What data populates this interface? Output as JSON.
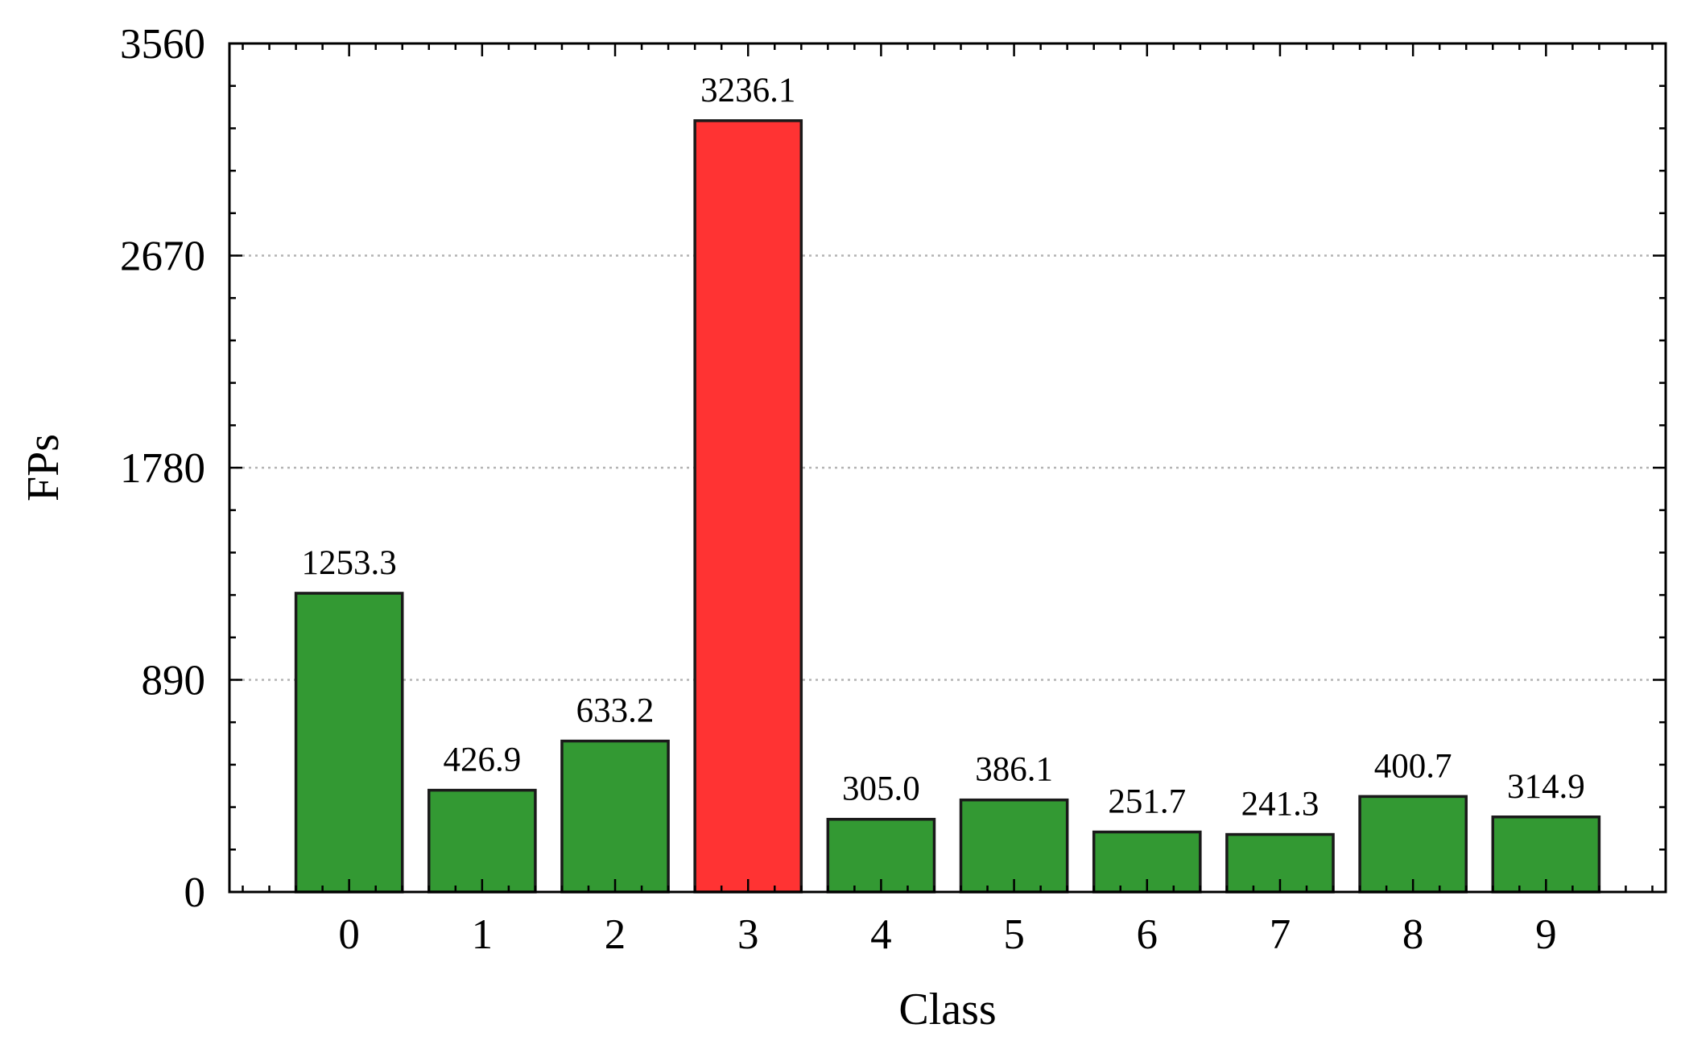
{
  "chart_data": {
    "type": "bar",
    "categories": [
      "0",
      "1",
      "2",
      "3",
      "4",
      "5",
      "6",
      "7",
      "8",
      "9"
    ],
    "values": [
      1253.3,
      426.9,
      633.2,
      3236.1,
      305.0,
      386.1,
      251.7,
      241.3,
      400.7,
      314.9
    ],
    "value_labels": [
      "1253.3",
      "426.9",
      "633.2",
      "3236.1",
      "305.0",
      "386.1",
      "251.7",
      "241.3",
      "400.7",
      "314.9"
    ],
    "highlight_index": 3,
    "xlabel": "Class",
    "ylabel": "FPs",
    "ylim": [
      0,
      3560
    ],
    "yticks": [
      0,
      890,
      1780,
      2670,
      3560
    ],
    "ytick_labels": [
      "0",
      "890",
      "1780",
      "2670",
      "3560"
    ],
    "grid": "horizontal dotted",
    "colors": {
      "bar": "#339933",
      "highlight": "#ff3333",
      "edge": "#1a1a1a",
      "grid": "#b3b3b3"
    }
  }
}
